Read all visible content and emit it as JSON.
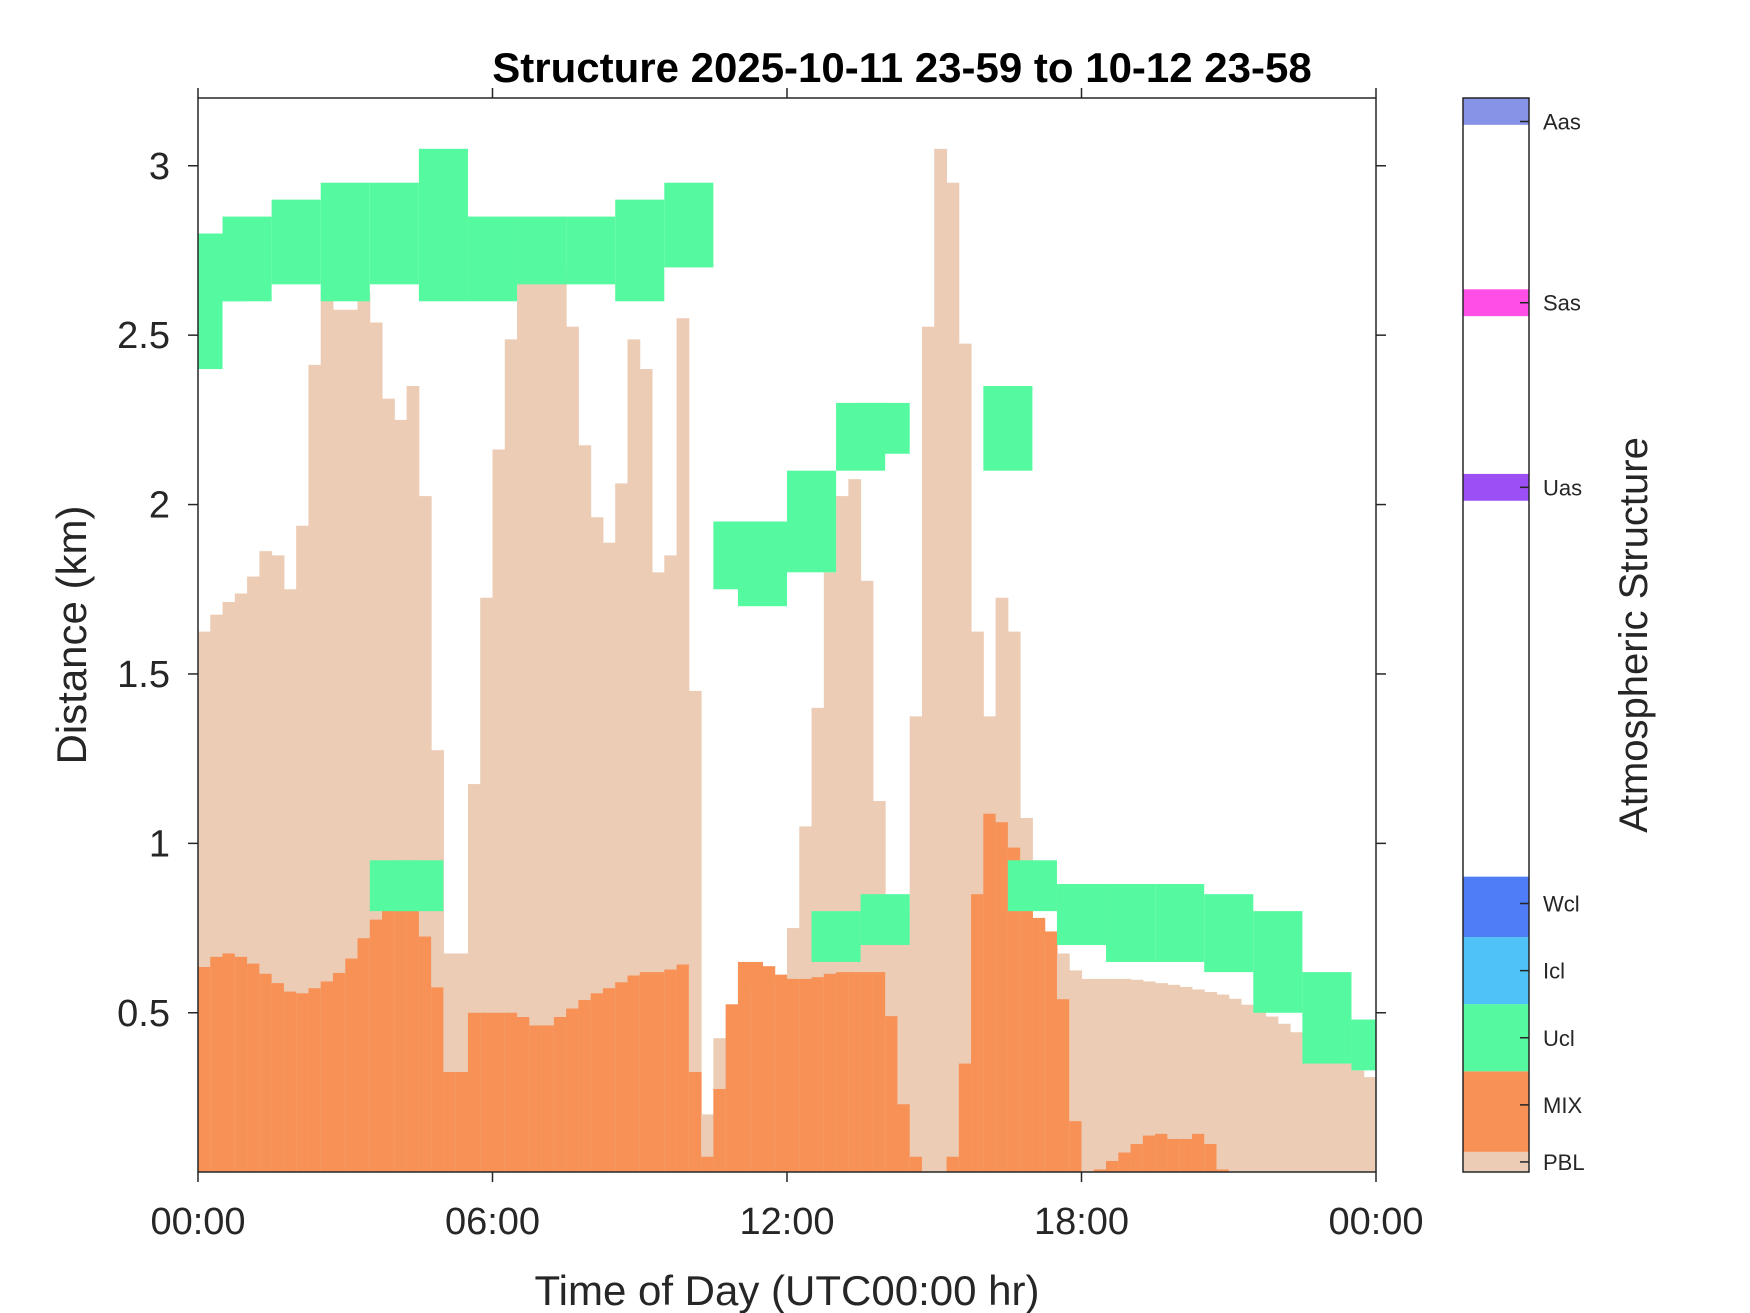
{
  "chart_data": {
    "type": "heatmap",
    "title": "Structure 2025-10-11 23-59 to 10-12 23-58",
    "xlabel": "Time of Day (UTC00:00 hr)",
    "ylabel": "Distance (km)",
    "xlim": [
      0,
      24
    ],
    "ylim": [
      0.03,
      3.2
    ],
    "xticks": [
      0,
      6,
      12,
      18,
      24
    ],
    "xtick_labels": [
      "00:00",
      "06:00",
      "12:00",
      "18:00",
      "00:00"
    ],
    "yticks": [
      0.5,
      1,
      1.5,
      2,
      2.5,
      3
    ],
    "ytick_labels": [
      "0.5",
      "1",
      "1.5",
      "2",
      "2.5",
      "3"
    ],
    "colorbar": {
      "label": "Atmospheric Structure",
      "classes": [
        {
          "name": "PBL",
          "color": "#ecccb5"
        },
        {
          "name": "MIX",
          "color": "#f79156"
        },
        {
          "name": "Ucl",
          "color": "#55f99f"
        },
        {
          "name": "Icl",
          "color": "#4fc3f7"
        },
        {
          "name": "Wcl",
          "color": "#4f7cf7"
        },
        {
          "name": "Uas",
          "color": "#9b4ff5"
        },
        {
          "name": "Sas",
          "color": "#ff4fe6"
        },
        {
          "name": "Aas",
          "color": "#8793e6"
        }
      ]
    },
    "mix_top_km": [
      [
        0.0,
        0.62
      ],
      [
        0.5,
        0.68
      ],
      [
        1.0,
        0.66
      ],
      [
        1.5,
        0.6
      ],
      [
        2.0,
        0.55
      ],
      [
        2.5,
        0.58
      ],
      [
        3.0,
        0.63
      ],
      [
        3.5,
        0.75
      ],
      [
        4.0,
        0.85
      ],
      [
        4.5,
        0.8
      ],
      [
        5.0,
        0.5
      ],
      [
        5.25,
        0.15
      ],
      [
        5.5,
        0.5
      ],
      [
        6.0,
        0.5
      ],
      [
        6.5,
        0.5
      ],
      [
        7.0,
        0.45
      ],
      [
        7.5,
        0.5
      ],
      [
        8.0,
        0.55
      ],
      [
        8.5,
        0.58
      ],
      [
        9.0,
        0.62
      ],
      [
        9.5,
        0.62
      ],
      [
        10.0,
        0.65
      ],
      [
        10.25,
        0.0
      ],
      [
        10.5,
        0.15
      ],
      [
        11.0,
        0.65
      ],
      [
        11.5,
        0.65
      ],
      [
        12.0,
        0.6
      ],
      [
        12.5,
        0.6
      ],
      [
        13.0,
        0.62
      ],
      [
        13.5,
        0.62
      ],
      [
        14.0,
        0.62
      ],
      [
        14.5,
        0.1
      ],
      [
        15.0,
        0.0
      ],
      [
        15.5,
        0.1
      ],
      [
        16.0,
        1.1
      ],
      [
        16.5,
        1.05
      ],
      [
        17.0,
        0.8
      ],
      [
        17.5,
        0.72
      ],
      [
        18.0,
        0.0
      ],
      [
        19.5,
        0.15
      ],
      [
        20.0,
        0.12
      ],
      [
        20.5,
        0.15
      ],
      [
        21.0,
        0.0
      ],
      [
        24.0,
        0.0
      ]
    ],
    "pbl_top_km": [
      [
        0.0,
        1.6
      ],
      [
        0.5,
        1.7
      ],
      [
        1.0,
        1.75
      ],
      [
        1.5,
        1.9
      ],
      [
        2.0,
        1.7
      ],
      [
        2.5,
        2.65
      ],
      [
        3.0,
        2.55
      ],
      [
        3.5,
        2.65
      ],
      [
        4.0,
        2.2
      ],
      [
        4.5,
        2.4
      ],
      [
        5.0,
        0.9
      ],
      [
        5.25,
        0.45
      ],
      [
        5.5,
        0.9
      ],
      [
        6.0,
        2.0
      ],
      [
        6.5,
        2.65
      ],
      [
        7.0,
        2.7
      ],
      [
        7.5,
        2.7
      ],
      [
        8.0,
        2.0
      ],
      [
        8.5,
        1.85
      ],
      [
        9.0,
        2.7
      ],
      [
        9.5,
        1.5
      ],
      [
        10.0,
        2.9
      ],
      [
        10.25,
        0.0
      ],
      [
        10.5,
        0.4
      ],
      [
        11.0,
        0.5
      ],
      [
        11.5,
        0.6
      ],
      [
        12.0,
        0.6
      ],
      [
        12.5,
        1.2
      ],
      [
        13.0,
        2.0
      ],
      [
        13.5,
        2.1
      ],
      [
        14.0,
        0.8
      ],
      [
        14.5,
        0.8
      ],
      [
        15.0,
        3.1
      ],
      [
        15.5,
        2.9
      ],
      [
        16.0,
        1.2
      ],
      [
        16.5,
        1.9
      ],
      [
        17.0,
        0.8
      ],
      [
        17.5,
        0.7
      ],
      [
        18.0,
        0.6
      ],
      [
        19.0,
        0.6
      ],
      [
        20.0,
        0.58
      ],
      [
        21.0,
        0.55
      ],
      [
        22.0,
        0.48
      ],
      [
        23.0,
        0.38
      ],
      [
        24.0,
        0.3
      ]
    ],
    "ucl_layers_km": [
      [
        0.0,
        2.4,
        2.7
      ],
      [
        0.5,
        2.6,
        2.8
      ],
      [
        1.0,
        2.6,
        2.85
      ],
      [
        2.0,
        2.65,
        2.9
      ],
      [
        3.0,
        2.6,
        2.95
      ],
      [
        4.0,
        2.65,
        2.95
      ],
      [
        5.0,
        2.6,
        3.05
      ],
      [
        6.0,
        2.6,
        2.85
      ],
      [
        7.0,
        2.65,
        2.85
      ],
      [
        8.0,
        2.65,
        2.85
      ],
      [
        9.0,
        2.6,
        2.9
      ],
      [
        10.0,
        2.7,
        2.95
      ],
      [
        11.0,
        1.75,
        1.95
      ],
      [
        11.5,
        1.7,
        1.95
      ],
      [
        12.5,
        1.8,
        2.1
      ],
      [
        13.5,
        2.1,
        2.3
      ],
      [
        14.0,
        2.15,
        2.3
      ],
      [
        16.5,
        2.1,
        2.35
      ],
      [
        4.0,
        0.8,
        0.95
      ],
      [
        4.5,
        0.8,
        0.95
      ],
      [
        13.0,
        0.65,
        0.8
      ],
      [
        14.0,
        0.7,
        0.85
      ],
      [
        17.0,
        0.8,
        0.95
      ],
      [
        18.0,
        0.7,
        0.88
      ],
      [
        19.0,
        0.65,
        0.88
      ],
      [
        20.0,
        0.65,
        0.88
      ],
      [
        21.0,
        0.62,
        0.85
      ],
      [
        22.0,
        0.5,
        0.8
      ],
      [
        23.0,
        0.35,
        0.62
      ],
      [
        24.0,
        0.33,
        0.48
      ]
    ]
  }
}
